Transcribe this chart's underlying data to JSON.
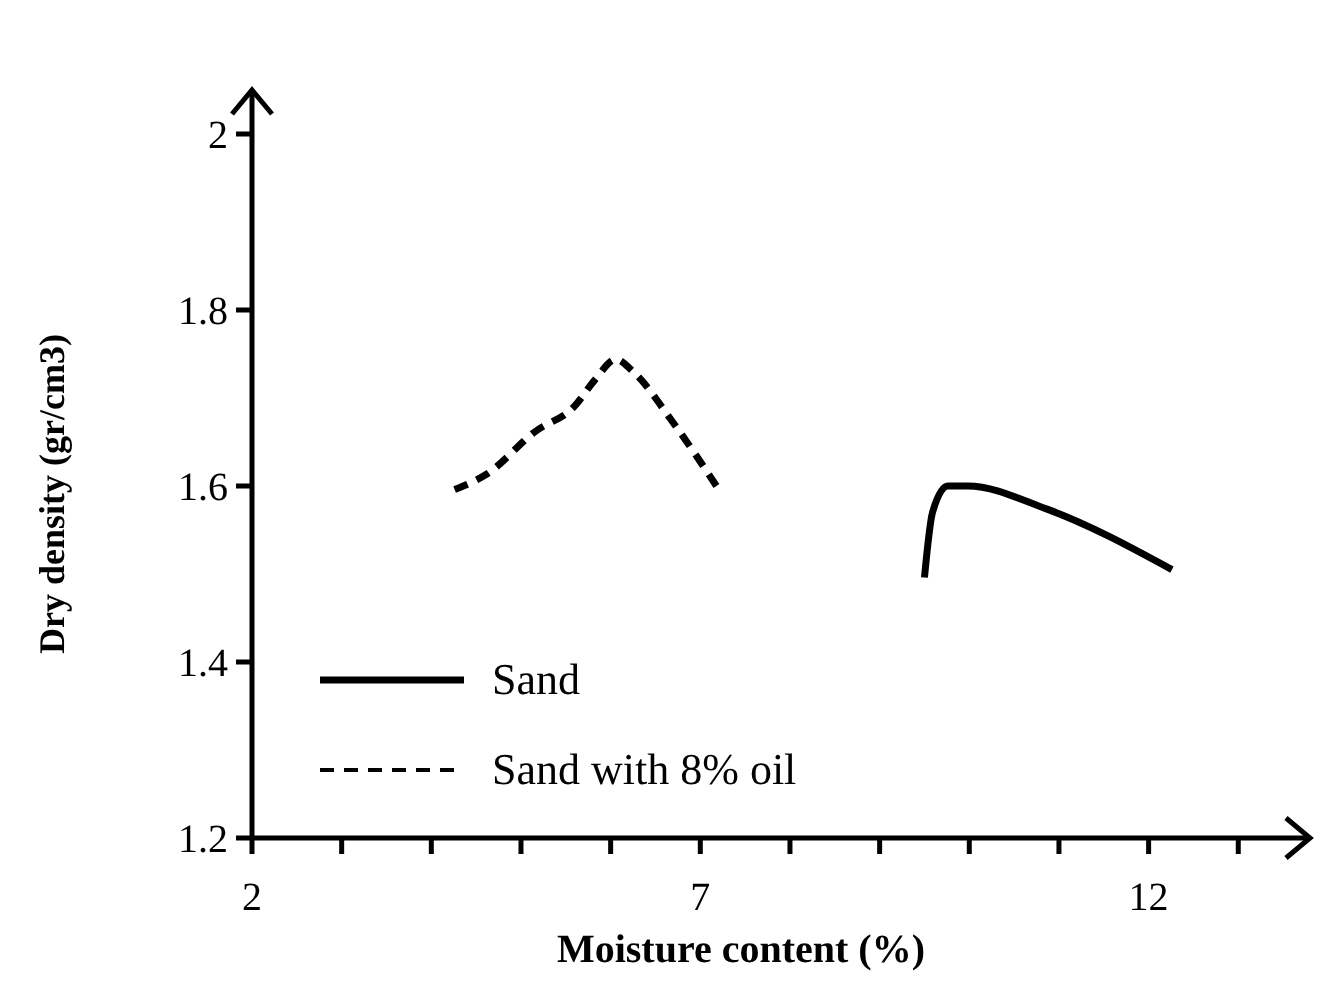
{
  "chart_data": {
    "type": "line",
    "xlabel": "Moisture content (%)",
    "ylabel": "Dry density (gr/cm3)",
    "xlim": [
      2,
      13.8
    ],
    "ylim": [
      1.2,
      2.05
    ],
    "xticks": [
      2,
      {
        "value": 3,
        "label": null
      },
      {
        "value": 4,
        "label": null
      },
      {
        "value": 5,
        "label": null
      },
      {
        "value": 6,
        "label": null
      },
      7,
      {
        "value": 8,
        "label": null
      },
      {
        "value": 9,
        "label": null
      },
      {
        "value": 10,
        "label": null
      },
      {
        "value": 11,
        "label": null
      },
      12,
      {
        "value": 13,
        "label": null
      }
    ],
    "yticks": [
      1.2,
      1.4,
      1.6,
      1.8,
      2
    ],
    "legend": "bottom left",
    "grid": false,
    "series": [
      {
        "name": "Sand",
        "color": "#000000",
        "line_style": "solid",
        "x": [
          9.5,
          9.59,
          9.76,
          9.98,
          10.86,
          12.26
        ],
        "values": [
          1.496,
          1.57,
          1.6,
          1.6,
          1.574,
          1.505
        ]
      },
      {
        "name": "Sand with 8% oil",
        "color": "#000000",
        "line_style": "dashed",
        "x": [
          4.26,
          4.61,
          5.16,
          5.6,
          5.82,
          6.06,
          6.25,
          6.69,
          7.18
        ],
        "values": [
          1.596,
          1.613,
          1.662,
          1.691,
          1.72,
          1.744,
          1.73,
          1.673,
          1.6
        ]
      }
    ]
  }
}
